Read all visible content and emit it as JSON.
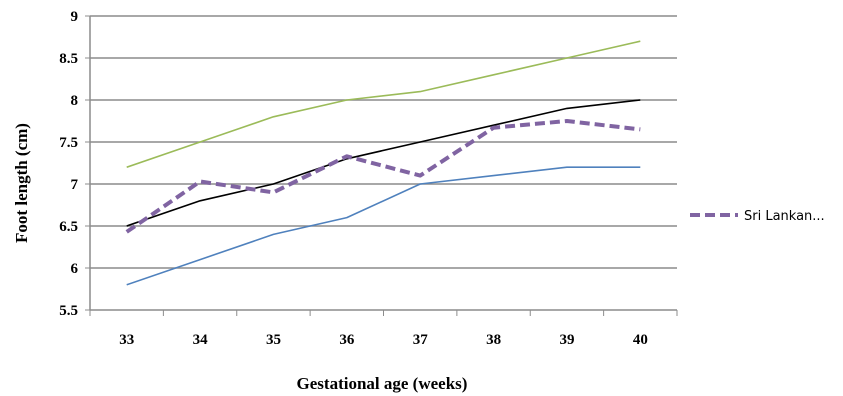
{
  "chart_data": {
    "type": "line",
    "xlabel": "Gestational age (weeks)",
    "ylabel": "Foot length (cm)",
    "ylim": [
      5.5,
      9
    ],
    "yticks": [
      "5.5",
      "6",
      "6.5",
      "7",
      "7.5",
      "8",
      "8.5",
      "9"
    ],
    "categories": [
      "33",
      "34",
      "35",
      "36",
      "37",
      "38",
      "39",
      "40"
    ],
    "grid": true,
    "legend_position": "right",
    "series": [
      {
        "name": "",
        "color": "#9bbb59",
        "style": "solid",
        "values": [
          7.2,
          7.5,
          7.8,
          8.0,
          8.1,
          8.3,
          8.5,
          8.7
        ]
      },
      {
        "name": "",
        "color": "#000000",
        "style": "solid",
        "values": [
          6.5,
          6.8,
          7.0,
          7.3,
          7.5,
          7.7,
          7.9,
          8.0
        ]
      },
      {
        "name": "Sri Lankan...",
        "color": "#8064a2",
        "style": "dashed",
        "values": [
          6.43,
          7.03,
          6.9,
          7.33,
          7.1,
          7.67,
          7.75,
          7.65
        ]
      },
      {
        "name": "",
        "color": "#4f81bd",
        "style": "solid",
        "values": [
          5.8,
          6.1,
          6.4,
          6.6,
          7.0,
          7.1,
          7.2,
          7.2
        ]
      }
    ]
  }
}
